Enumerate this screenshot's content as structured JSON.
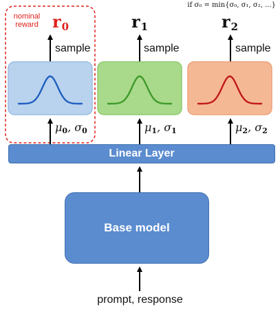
{
  "condition_text": "if σ₀ = min{σ₀, σ₁, σ₂, ...}",
  "nominal_reward_label": "nominal reward",
  "heads": [
    {
      "reward": "r",
      "reward_sub": "0",
      "sample_label": "sample",
      "param_mu": "μ",
      "param_sigma": "σ",
      "param_sub": "0",
      "curve_color": "#1f5fbf",
      "box_fill": "#b9d2ee",
      "box_stroke": "#9bbde2"
    },
    {
      "reward": "r",
      "reward_sub": "1",
      "sample_label": "sample",
      "param_mu": "μ",
      "param_sigma": "σ",
      "param_sub": "1",
      "curve_color": "#3f9a2a",
      "box_fill": "#a9d98b",
      "box_stroke": "#8fcb6e"
    },
    {
      "reward": "r",
      "reward_sub": "2",
      "sample_label": "sample",
      "param_mu": "μ",
      "param_sigma": "σ",
      "param_sub": "2",
      "curve_color": "#c01818",
      "box_fill": "#f5b895",
      "box_stroke": "#eea27a"
    }
  ],
  "linear_layer_label": "Linear Layer",
  "base_model_label": "Base model",
  "input_label": "prompt, response",
  "colors": {
    "highlight": "#e0201c",
    "block": "#5b8ccf"
  }
}
